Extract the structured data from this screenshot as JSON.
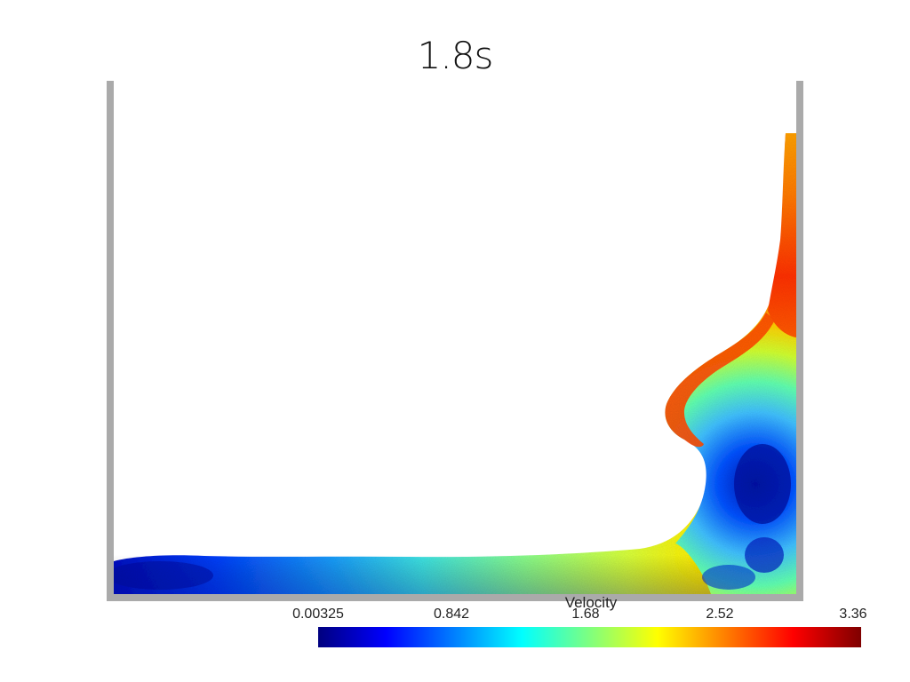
{
  "title": "1.8s",
  "colorbar": {
    "title": "Velocity",
    "ticks": [
      "0.00325",
      "0.842",
      "1.68",
      "2.52",
      "3.36"
    ],
    "range": [
      0.00325,
      3.36
    ],
    "colormap": [
      "#00007f",
      "#0000ff",
      "#007fff",
      "#00ffff",
      "#7fff7f",
      "#ffff00",
      "#ff7f00",
      "#ff0000",
      "#7f0000"
    ]
  },
  "container": {
    "wall_color": "#aaaaaa"
  }
}
